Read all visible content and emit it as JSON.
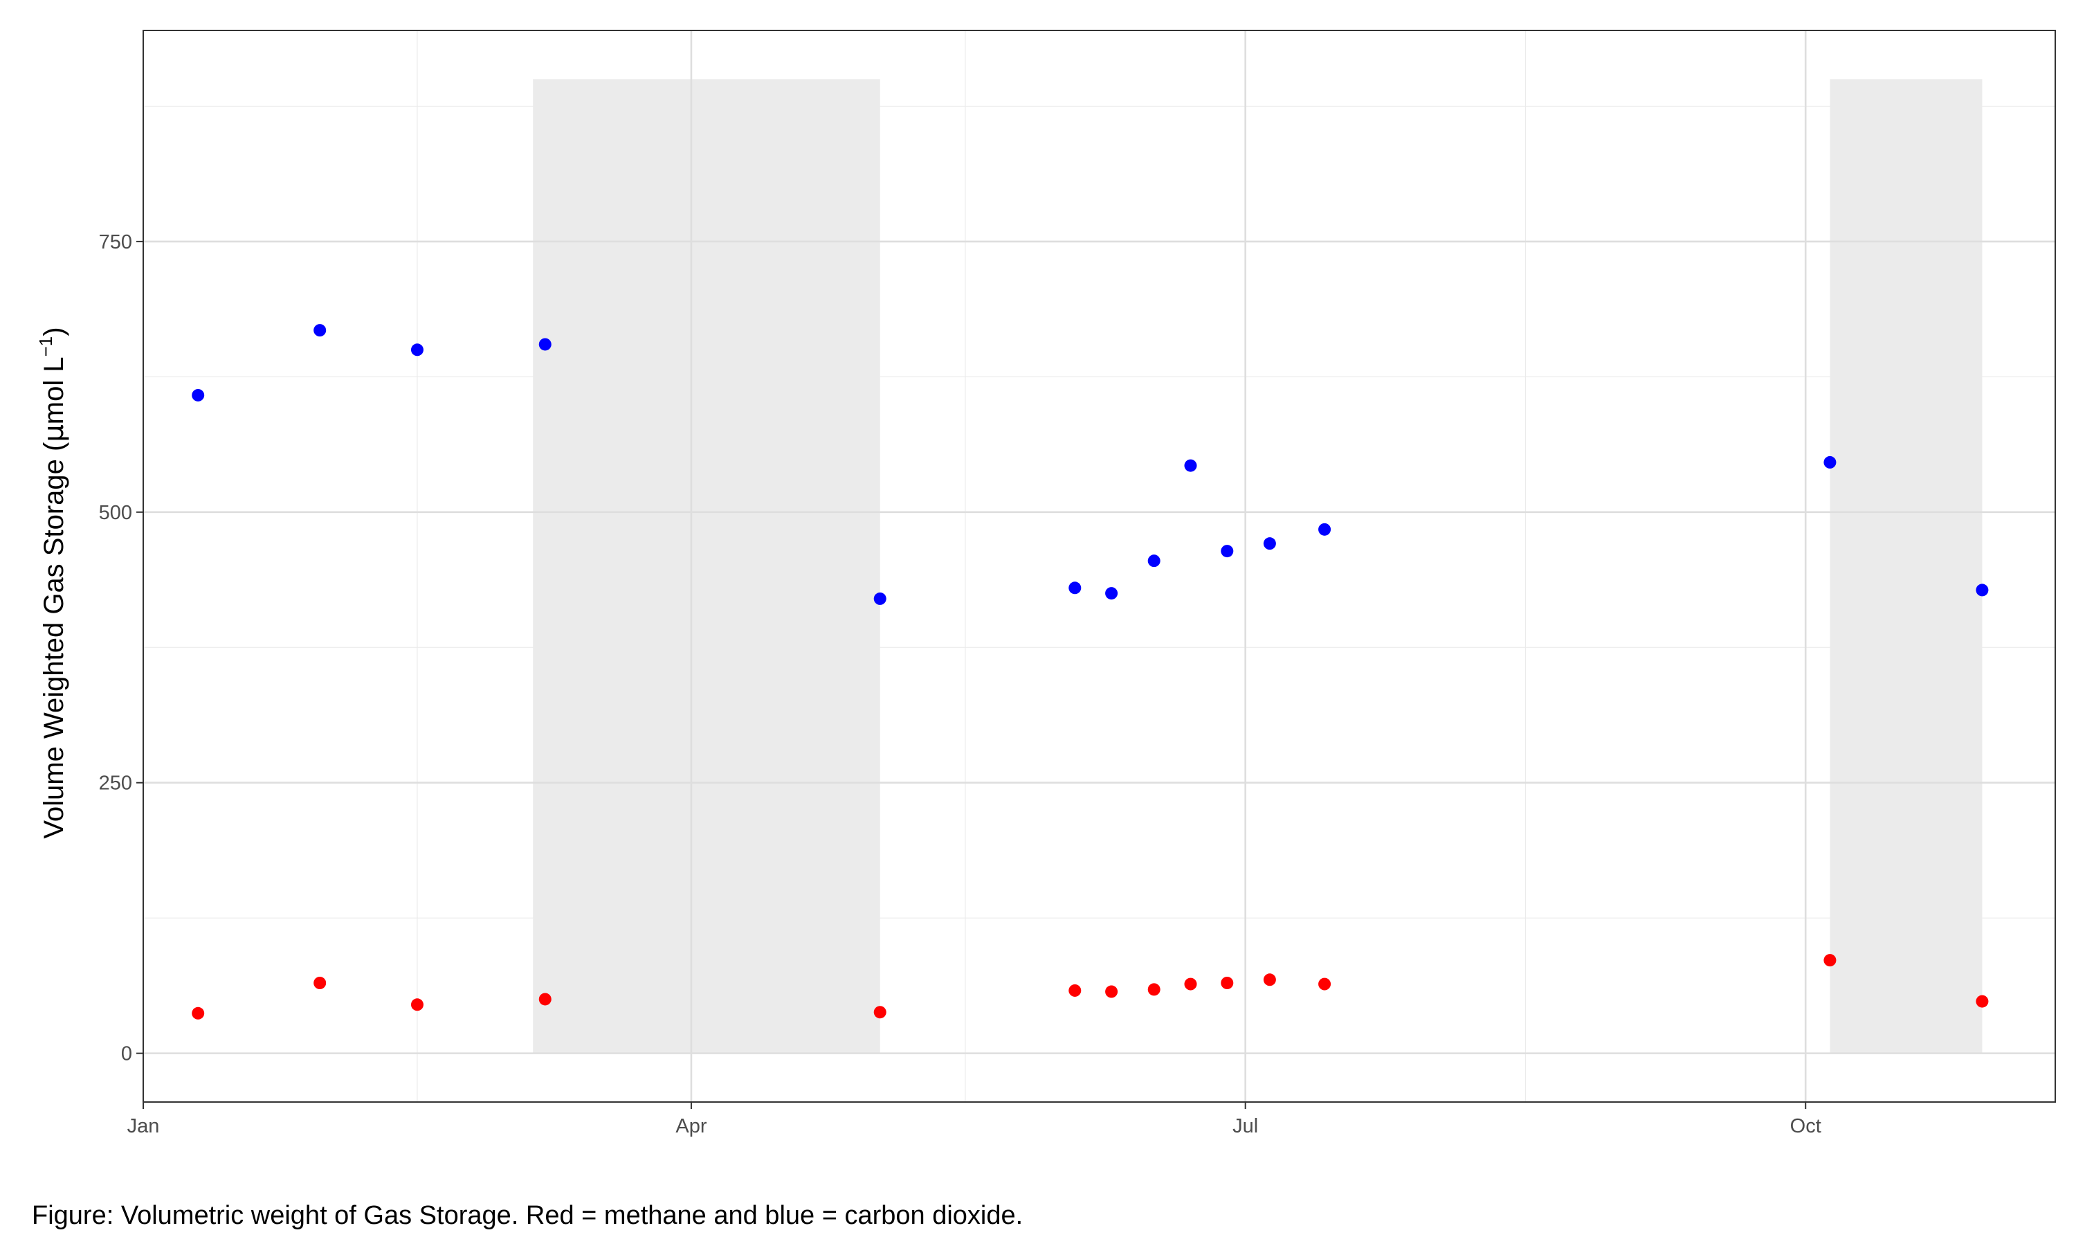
{
  "caption": "Figure: Volumetric weight of Gas Storage. Red = methane and blue = carbon dioxide.",
  "chart_data": {
    "type": "scatter",
    "title": "",
    "xlabel": "",
    "ylabel": {
      "main": "Volume Weighted Gas Storage (",
      "mu": "μ",
      "unit": "mol L",
      "exponent": "−1",
      "close": ")"
    },
    "x_axis": {
      "type": "date",
      "range": [
        "2023-01-01",
        "2023-11-11"
      ],
      "ticks": [
        {
          "date": "2023-01-01",
          "label": "Jan"
        },
        {
          "date": "2023-04-01",
          "label": "Apr"
        },
        {
          "date": "2023-07-01",
          "label": "Jul"
        },
        {
          "date": "2023-10-01",
          "label": "Oct"
        }
      ],
      "minor_ticks": [
        "2023-02-15",
        "2023-05-16",
        "2023-08-16"
      ]
    },
    "y_axis": {
      "range": [
        -45,
        945
      ],
      "ticks": [
        0,
        250,
        500,
        750
      ],
      "minor_ticks": [
        125,
        375,
        625,
        875
      ]
    },
    "grid": true,
    "legend": "none",
    "shaded_periods": [
      {
        "start": "2023-03-06",
        "end": "2023-05-02",
        "ymin": 0,
        "ymax": 900,
        "color": "#ebebeb"
      },
      {
        "start": "2023-10-05",
        "end": "2023-10-30",
        "ymin": 0,
        "ymax": 900,
        "color": "#ebebeb"
      }
    ],
    "series": [
      {
        "color": "#0000ff",
        "points": [
          {
            "x": "2023-01-10",
            "y": 608
          },
          {
            "x": "2023-01-30",
            "y": 668
          },
          {
            "x": "2023-02-15",
            "y": 650
          },
          {
            "x": "2023-03-08",
            "y": 655
          },
          {
            "x": "2023-05-02",
            "y": 420
          },
          {
            "x": "2023-06-03",
            "y": 430
          },
          {
            "x": "2023-06-09",
            "y": 425
          },
          {
            "x": "2023-06-16",
            "y": 455
          },
          {
            "x": "2023-06-22",
            "y": 543
          },
          {
            "x": "2023-06-28",
            "y": 464
          },
          {
            "x": "2023-07-05",
            "y": 471
          },
          {
            "x": "2023-07-14",
            "y": 484
          },
          {
            "x": "2023-10-05",
            "y": 546
          },
          {
            "x": "2023-10-30",
            "y": 428
          }
        ]
      },
      {
        "color": "#ff0000",
        "points": [
          {
            "x": "2023-01-10",
            "y": 37
          },
          {
            "x": "2023-01-30",
            "y": 65
          },
          {
            "x": "2023-02-15",
            "y": 45
          },
          {
            "x": "2023-03-08",
            "y": 50
          },
          {
            "x": "2023-05-02",
            "y": 38
          },
          {
            "x": "2023-06-03",
            "y": 58
          },
          {
            "x": "2023-06-09",
            "y": 57
          },
          {
            "x": "2023-06-16",
            "y": 59
          },
          {
            "x": "2023-06-22",
            "y": 64
          },
          {
            "x": "2023-06-28",
            "y": 65
          },
          {
            "x": "2023-07-05",
            "y": 68
          },
          {
            "x": "2023-07-14",
            "y": 64
          },
          {
            "x": "2023-10-05",
            "y": 86
          },
          {
            "x": "2023-10-30",
            "y": 48
          }
        ]
      }
    ]
  }
}
